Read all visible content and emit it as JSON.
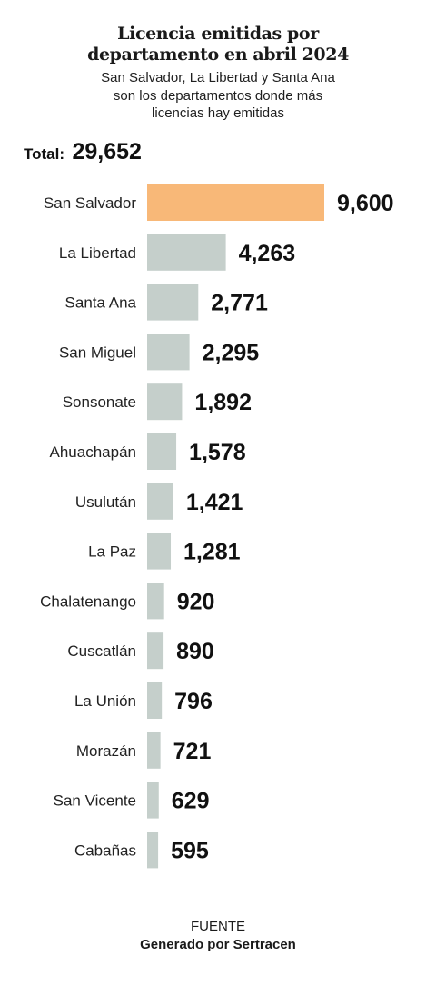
{
  "chart_data": {
    "type": "bar",
    "orientation": "horizontal",
    "title": [
      "Licencia emitidas por",
      "departamento en abril 2024"
    ],
    "subtitle": [
      "San Salvador, La Libertad y Santa Ana",
      "son los departamentos donde más",
      "licencias hay emitidas"
    ],
    "total_label": "Total:",
    "total_value": "29,652",
    "categories": [
      "San Salvador",
      "La Libertad",
      "Santa Ana",
      "San Miguel",
      "Sonsonate",
      "Ahuachapán",
      "Usulután",
      "La Paz",
      "Chalatenango",
      "Cuscatlán",
      "La Unión",
      "Morazán",
      "San Vicente",
      "Cabañas"
    ],
    "values": [
      9600,
      4263,
      2771,
      2295,
      1892,
      1578,
      1421,
      1281,
      920,
      890,
      796,
      721,
      629,
      595
    ],
    "value_labels": [
      "9,600",
      "4,263",
      "2,771",
      "2,295",
      "1,892",
      "1,578",
      "1,421",
      "1,281",
      "920",
      "890",
      "796",
      "721",
      "629",
      "595"
    ],
    "highlight_index": 0,
    "colors": {
      "highlight": "#f8b878",
      "default": "#c5cfcb"
    }
  },
  "source": {
    "label": "FUENTE",
    "text": "Generado por Sertracen"
  }
}
